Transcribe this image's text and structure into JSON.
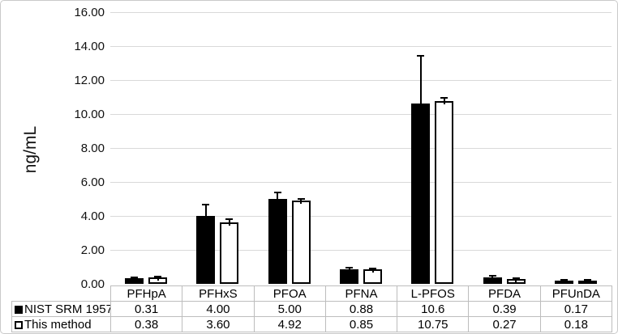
{
  "chart_data": {
    "type": "bar",
    "title": "",
    "xlabel": "",
    "ylabel": "ng/mL",
    "ylim": [
      0,
      16
    ],
    "ytick_step": 2,
    "ytick_labels": [
      "16.00",
      "14.00",
      "12.00",
      "10.00",
      "8.00",
      "6.00",
      "4.00",
      "2.00",
      "0.00"
    ],
    "categories": [
      "PFHpA",
      "PFHxS",
      "PFOA",
      "PFNA",
      "L-PFOS",
      "PFDA",
      "PFUnDA"
    ],
    "series": [
      {
        "name": "NIST SRM 1957",
        "marker": "filled-square",
        "bar_style": "filled",
        "values": [
          0.31,
          4.0,
          5.0,
          0.88,
          10.6,
          0.39,
          0.17
        ],
        "errors_up": [
          0.07,
          0.65,
          0.4,
          0.08,
          2.85,
          0.08,
          0.05
        ],
        "table_values": [
          "0.31",
          "4.00",
          "5.00",
          "0.88",
          "10.6",
          "0.39",
          "0.17"
        ]
      },
      {
        "name": "This method",
        "marker": "open-square",
        "bar_style": "open",
        "values": [
          0.38,
          3.6,
          4.92,
          0.85,
          10.75,
          0.27,
          0.18
        ],
        "errors_up": [
          0.05,
          0.2,
          0.08,
          0.07,
          0.2,
          0.05,
          0.06
        ],
        "table_values": [
          "0.38",
          "3.60",
          "4.92",
          "0.85",
          "10.75",
          "0.27",
          "0.18"
        ]
      }
    ],
    "legend_position": "table-left",
    "grid": true,
    "colors": {
      "bar_fill": "#000000",
      "bar_open_fill": "#ffffff",
      "grid": "#d9d9d9",
      "table_border": "#bdbdbd",
      "text": "#000000"
    }
  }
}
